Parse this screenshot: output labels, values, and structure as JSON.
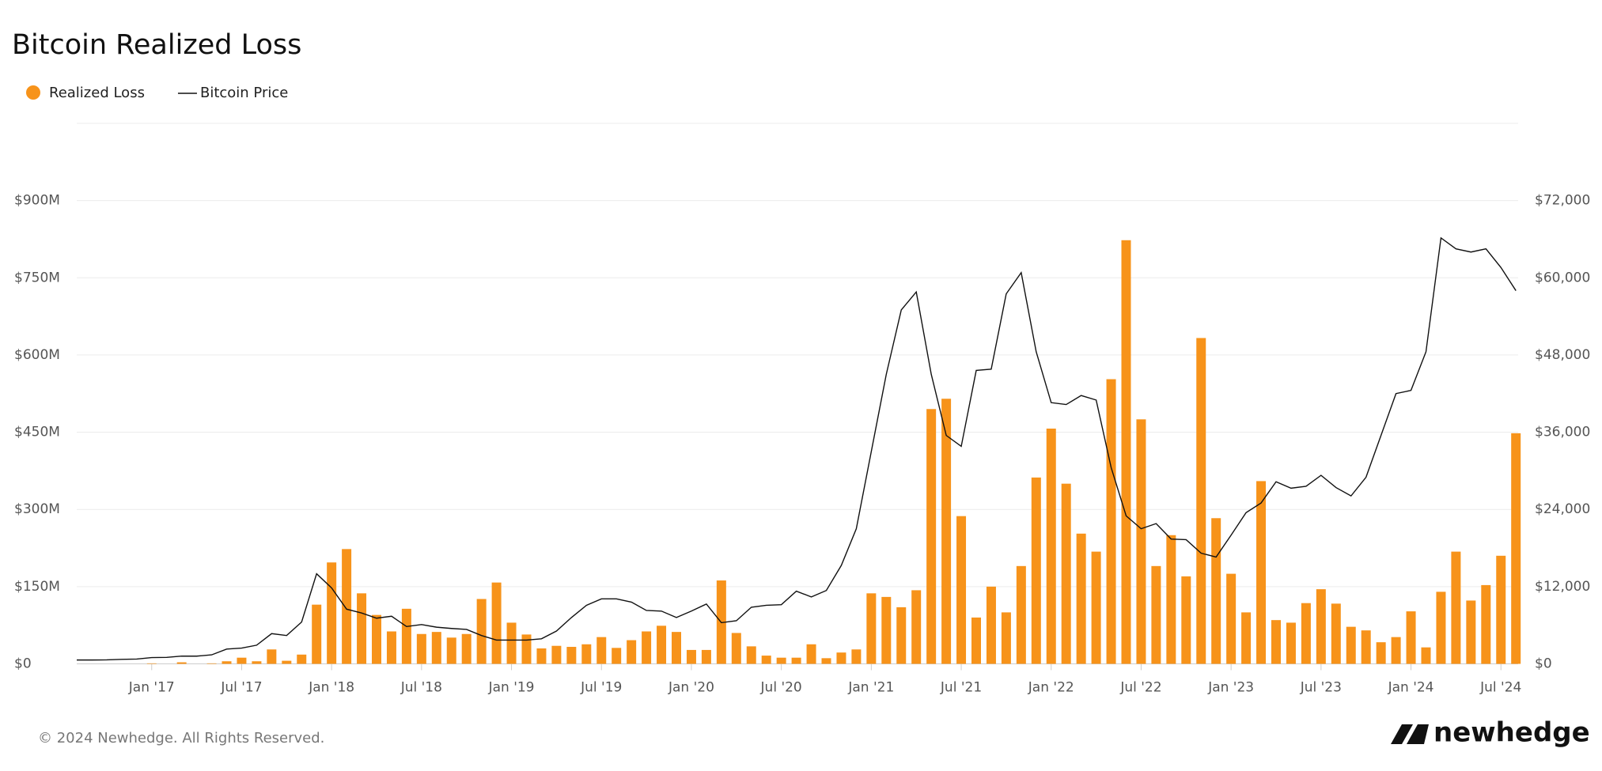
{
  "chart_data": {
    "type": "bar",
    "title": "Bitcoin Realized Loss",
    "x": [
      "2016-08",
      "2016-09",
      "2016-10",
      "2016-11",
      "2016-12",
      "2017-01",
      "2017-02",
      "2017-03",
      "2017-04",
      "2017-05",
      "2017-06",
      "2017-07",
      "2017-08",
      "2017-09",
      "2017-10",
      "2017-11",
      "2017-12",
      "2018-01",
      "2018-02",
      "2018-03",
      "2018-04",
      "2018-05",
      "2018-06",
      "2018-07",
      "2018-08",
      "2018-09",
      "2018-10",
      "2018-11",
      "2018-12",
      "2019-01",
      "2019-02",
      "2019-03",
      "2019-04",
      "2019-05",
      "2019-06",
      "2019-07",
      "2019-08",
      "2019-09",
      "2019-10",
      "2019-11",
      "2019-12",
      "2020-01",
      "2020-02",
      "2020-03",
      "2020-04",
      "2020-05",
      "2020-06",
      "2020-07",
      "2020-08",
      "2020-09",
      "2020-10",
      "2020-11",
      "2020-12",
      "2021-01",
      "2021-02",
      "2021-03",
      "2021-04",
      "2021-05",
      "2021-06",
      "2021-07",
      "2021-08",
      "2021-09",
      "2021-10",
      "2021-11",
      "2021-12",
      "2022-01",
      "2022-02",
      "2022-03",
      "2022-04",
      "2022-05",
      "2022-06",
      "2022-07",
      "2022-08",
      "2022-09",
      "2022-10",
      "2022-11",
      "2022-12",
      "2023-01",
      "2023-02",
      "2023-03",
      "2023-04",
      "2023-05",
      "2023-06",
      "2023-07",
      "2023-08",
      "2023-09",
      "2023-10",
      "2023-11",
      "2023-12",
      "2024-01",
      "2024-02",
      "2024-03",
      "2024-04",
      "2024-05",
      "2024-06",
      "2024-07",
      "2024-08"
    ],
    "series": [
      {
        "name": "Realized Loss",
        "type": "bar",
        "color": "#f7931a",
        "values": [
          0,
          0,
          0,
          0,
          0,
          1,
          0,
          3,
          0,
          1,
          5,
          12,
          5,
          28,
          6,
          18,
          115,
          197,
          223,
          137,
          95,
          63,
          107,
          58,
          62,
          51,
          58,
          126,
          158,
          80,
          57,
          30,
          35,
          33,
          38,
          52,
          31,
          46,
          63,
          74,
          62,
          27,
          27,
          162,
          60,
          34,
          16,
          12,
          12,
          38,
          11,
          22,
          28,
          137,
          130,
          110,
          143,
          495,
          515,
          287,
          90,
          150,
          100,
          190,
          362,
          457,
          350,
          253,
          218,
          553,
          823,
          475,
          190,
          250,
          170,
          633,
          283,
          175,
          100,
          355,
          85,
          80,
          118,
          145,
          117,
          72,
          65,
          42,
          52,
          102,
          32,
          140,
          218,
          123,
          153,
          210,
          448
        ]
      },
      {
        "name": "Bitcoin Price",
        "type": "line",
        "axis": "y2",
        "color": "#111111",
        "values": [
          600,
          600,
          620,
          700,
          750,
          970,
          1000,
          1200,
          1200,
          1400,
          2300,
          2450,
          2900,
          4700,
          4400,
          6500,
          14000,
          11800,
          8500,
          7900,
          7100,
          7400,
          5800,
          6100,
          5700,
          5500,
          5350,
          4400,
          3700,
          3700,
          3700,
          3900,
          5100,
          7200,
          9100,
          10100,
          10100,
          9600,
          8300,
          8200,
          7200,
          8200,
          9300,
          6400,
          6700,
          8800,
          9100,
          9200,
          11300,
          10400,
          11400,
          15300,
          21000,
          33000,
          45000,
          55000,
          57800,
          45000,
          35500,
          33800,
          45600,
          45800,
          57500,
          60800,
          48500,
          40600,
          40300,
          41700,
          41000,
          30500,
          23000,
          21000,
          21800,
          19400,
          19300,
          17200,
          16600,
          20000,
          23500,
          25000,
          28300,
          27300,
          27600,
          29300,
          27400,
          26100,
          29000,
          35500,
          42000,
          42500,
          48500,
          66200,
          64500,
          64000,
          64500,
          61600,
          58000
        ]
      }
    ],
    "ylim": [
      0,
      1050
    ],
    "yticks": [
      {
        "value": 0,
        "label": "$0"
      },
      {
        "value": 150,
        "label": "$150M"
      },
      {
        "value": 300,
        "label": "$300M"
      },
      {
        "value": 450,
        "label": "$450M"
      },
      {
        "value": 600,
        "label": "$600M"
      },
      {
        "value": 750,
        "label": "$750M"
      },
      {
        "value": 900,
        "label": "$900M"
      }
    ],
    "y2lim": [
      0,
      84000
    ],
    "y2ticks": [
      {
        "value": 0,
        "label": "$0"
      },
      {
        "value": 12000,
        "label": "$12,000"
      },
      {
        "value": 24000,
        "label": "$24,000"
      },
      {
        "value": 36000,
        "label": "$36,000"
      },
      {
        "value": 48000,
        "label": "$48,000"
      },
      {
        "value": 60000,
        "label": "$60,000"
      },
      {
        "value": 72000,
        "label": "$72,000"
      }
    ],
    "xticks": [
      {
        "value": "2017-01",
        "label": "Jan '17"
      },
      {
        "value": "2017-07",
        "label": "Jul '17"
      },
      {
        "value": "2018-01",
        "label": "Jan '18"
      },
      {
        "value": "2018-07",
        "label": "Jul '18"
      },
      {
        "value": "2019-01",
        "label": "Jan '19"
      },
      {
        "value": "2019-07",
        "label": "Jul '19"
      },
      {
        "value": "2020-01",
        "label": "Jan '20"
      },
      {
        "value": "2020-07",
        "label": "Jul '20"
      },
      {
        "value": "2021-01",
        "label": "Jan '21"
      },
      {
        "value": "2021-07",
        "label": "Jul '21"
      },
      {
        "value": "2022-01",
        "label": "Jan '22"
      },
      {
        "value": "2022-07",
        "label": "Jul '22"
      },
      {
        "value": "2023-01",
        "label": "Jan '23"
      },
      {
        "value": "2023-07",
        "label": "Jul '23"
      },
      {
        "value": "2024-01",
        "label": "Jan '24"
      },
      {
        "value": "2024-07",
        "label": "Jul '24"
      }
    ],
    "grid": true,
    "footer": "© 2024 Newhedge. All Rights Reserved.",
    "logo": "newhedge"
  }
}
